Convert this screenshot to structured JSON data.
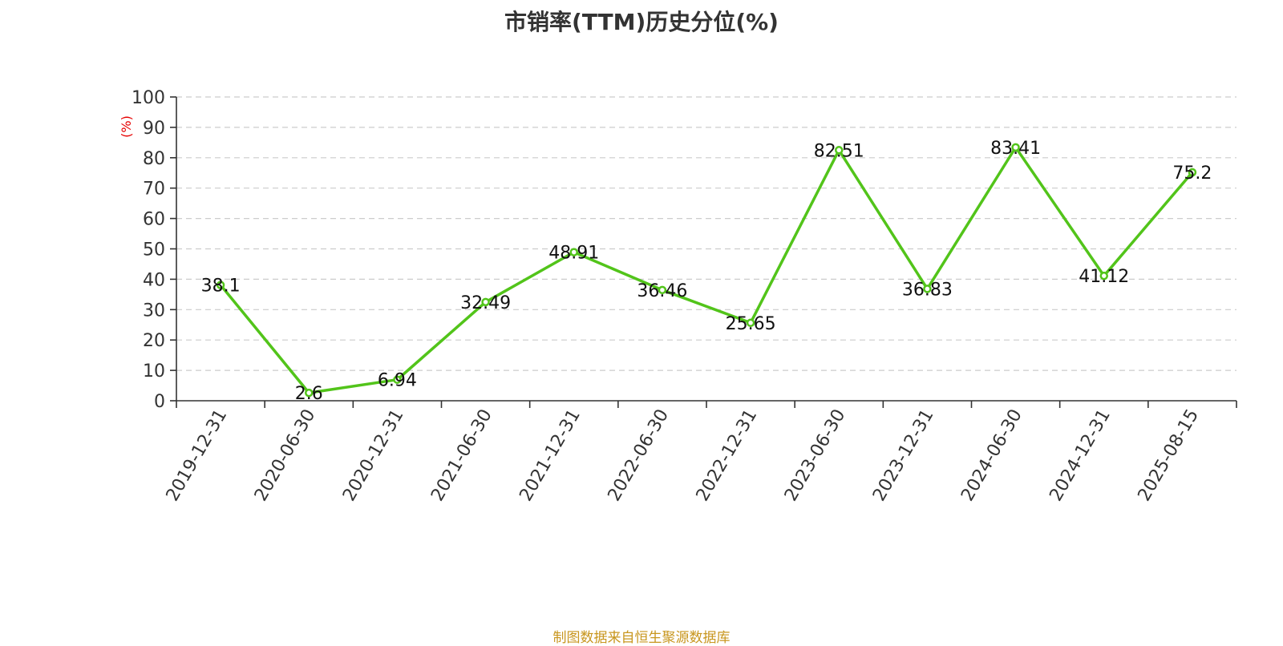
{
  "chart_data": {
    "type": "line",
    "title": "市销率(TTM)历史分位(%)",
    "ylabel": "(%)",
    "xlabel": "",
    "ylim": [
      0,
      100
    ],
    "y_ticks": [
      0,
      10,
      20,
      30,
      40,
      50,
      60,
      70,
      80,
      90,
      100
    ],
    "grid": true,
    "categories": [
      "2019-12-31",
      "2020-06-30",
      "2020-12-31",
      "2021-06-30",
      "2021-12-31",
      "2022-06-30",
      "2022-12-31",
      "2023-06-30",
      "2023-12-31",
      "2024-06-30",
      "2024-12-31",
      "2025-08-15"
    ],
    "series": [
      {
        "values": [
          38.1,
          2.6,
          6.94,
          32.49,
          48.91,
          36.46,
          25.65,
          82.51,
          36.83,
          83.41,
          41.12,
          75.2
        ],
        "labels": [
          "38.1",
          "2.6",
          "6.94",
          "32.49",
          "48.91",
          "36.46",
          "25.65",
          "82.51",
          "36.83",
          "83.41",
          "41.12",
          "75.2"
        ],
        "color": "#52c41a"
      }
    ]
  },
  "colors": {
    "ylabel": "#e60000",
    "source": "#c8961e"
  },
  "footer": {
    "source": "制图数据来自恒生聚源数据库"
  }
}
